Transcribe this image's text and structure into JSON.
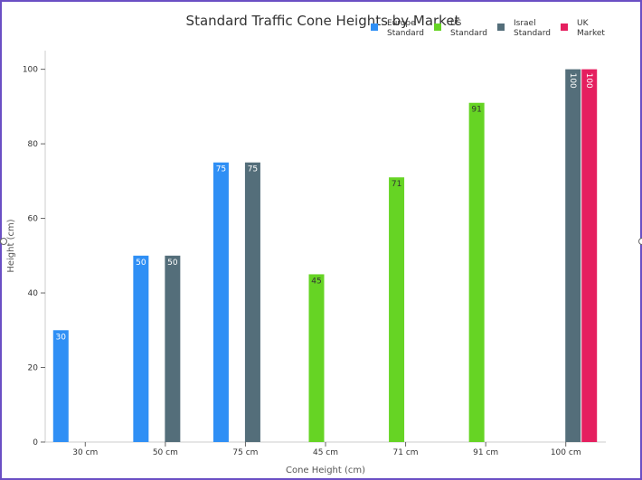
{
  "chart_data": {
    "type": "bar",
    "title": "Standard Traffic Cone Heights by Market",
    "xlabel": "Cone Height (cm)",
    "ylabel": "Height (cm)",
    "ylim": [
      0,
      105
    ],
    "yticks": [
      0,
      20,
      40,
      60,
      80,
      100
    ],
    "categories": [
      "30 cm",
      "50 cm",
      "75 cm",
      "45 cm",
      "71 cm",
      "91 cm",
      "100 cm"
    ],
    "legend_position": "top-right",
    "series": [
      {
        "name": "Europe\nStandard",
        "color": "#2f8ff5",
        "values": [
          30,
          50,
          75,
          null,
          null,
          null,
          null
        ]
      },
      {
        "name": "US\nStandard",
        "color": "#66d424",
        "values": [
          null,
          null,
          null,
          45,
          71,
          91,
          null
        ]
      },
      {
        "name": "Israel\nStandard",
        "color": "#546e7a",
        "values": [
          null,
          50,
          75,
          null,
          null,
          null,
          100
        ]
      },
      {
        "name": "UK\nMarket",
        "color": "#e51f5f",
        "values": [
          null,
          null,
          null,
          null,
          null,
          null,
          100
        ]
      }
    ]
  }
}
